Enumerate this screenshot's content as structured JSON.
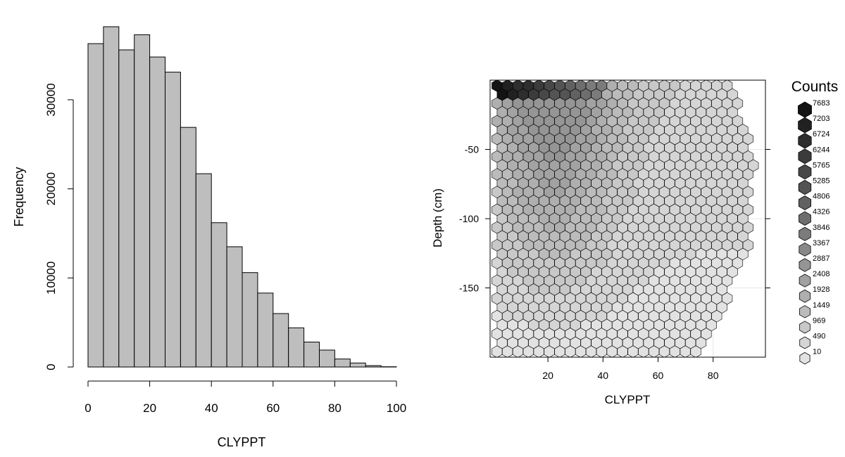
{
  "chart_data": [
    {
      "type": "bar",
      "xlabel": "CLYPPT",
      "ylabel": "Frequency",
      "bin_edges": [
        0,
        5,
        10,
        15,
        20,
        25,
        30,
        35,
        40,
        45,
        50,
        55,
        60,
        65,
        70,
        75,
        80,
        85,
        90,
        95,
        100
      ],
      "values": [
        36300,
        38200,
        35600,
        37300,
        34800,
        33100,
        26900,
        21700,
        16200,
        13500,
        10600,
        8300,
        6000,
        4400,
        2800,
        1900,
        900,
        450,
        160,
        30
      ],
      "xlim": [
        0,
        100
      ],
      "ylim": [
        0,
        38200
      ],
      "xticks": [
        0,
        20,
        40,
        60,
        80,
        100
      ],
      "yticks": [
        0,
        10000,
        20000,
        30000
      ],
      "bar_fill": "#bebebe",
      "bar_stroke": "#000000"
    },
    {
      "type": "heatmap",
      "subtype": "hexbin",
      "xlabel": "CLYPPT",
      "ylabel": "Depth (cm)",
      "xlim": [
        -1,
        99
      ],
      "ylim": [
        -200,
        0
      ],
      "xticks": [
        20,
        40,
        60,
        80
      ],
      "yticks": [
        -50,
        -100,
        -150
      ],
      "grid": true,
      "legend": {
        "title": "Counts",
        "position": "right",
        "levels": [
          "7683",
          "7203",
          "6724",
          "6244",
          "5765",
          "5285",
          "4806",
          "4326",
          "3846",
          "3367",
          "2887",
          "2408",
          "1928",
          "1449",
          "969",
          "490",
          "10"
        ]
      },
      "density": {
        "x_max_by_depth": [
          [
            -5,
            88
          ],
          [
            -60,
            95
          ],
          [
            -120,
            93
          ],
          [
            -160,
            85
          ],
          [
            -200,
            75
          ]
        ],
        "hot_surface_x_range": [
          0,
          40
        ],
        "hot_surface_count": 7683,
        "dark_center_x": 22,
        "count_range": [
          10,
          7683
        ]
      }
    }
  ]
}
